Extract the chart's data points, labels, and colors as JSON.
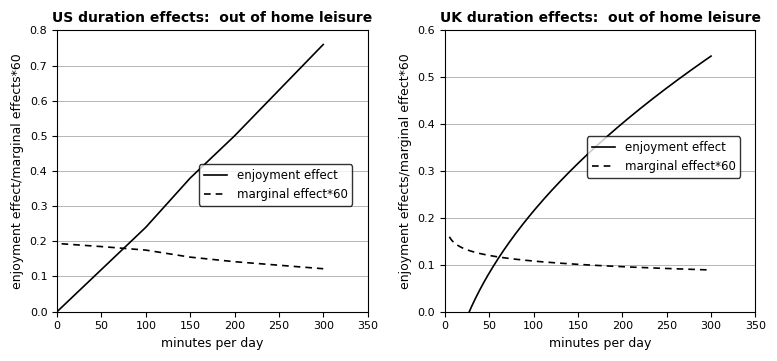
{
  "us_title": "US duration effects:  out of home leisure",
  "uk_title": "UK duration effects:  out of home leisure",
  "xlabel": "minutes per day",
  "us_ylabel": "enjoyment effect/marginal effects*60",
  "uk_ylabel": "enjoyment effects/marginal effect*60",
  "legend_enjoy": "enjoyment effect",
  "legend_marginal": "marginal effect*60",
  "x_max": 350,
  "x_ticks": [
    0,
    50,
    100,
    150,
    200,
    250,
    300,
    350
  ],
  "us_ylim": [
    0,
    0.8
  ],
  "us_yticks": [
    0,
    0.1,
    0.2,
    0.3,
    0.4,
    0.5,
    0.6,
    0.7,
    0.8
  ],
  "uk_ylim": [
    0,
    0.6
  ],
  "uk_yticks": [
    0,
    0.1,
    0.2,
    0.3,
    0.4,
    0.5,
    0.6
  ],
  "us_enjoy_x": [
    0,
    50,
    100,
    150,
    200,
    250,
    300
  ],
  "us_enjoy_y": [
    0.0,
    0.12,
    0.24,
    0.38,
    0.5,
    0.63,
    0.76
  ],
  "us_marginal_x": [
    5,
    50,
    100,
    150,
    200,
    250,
    300
  ],
  "us_marginal_y": [
    0.193,
    0.185,
    0.175,
    0.155,
    0.142,
    0.132,
    0.122
  ],
  "uk_enjoy_x": [
    0,
    50,
    100,
    150,
    200,
    250,
    300
  ],
  "uk_enjoy_y": [
    0.0,
    0.1,
    0.2,
    0.3,
    0.4,
    0.49,
    0.548
  ],
  "uk_marginal_x": [
    5,
    50,
    100,
    150,
    200,
    250,
    300
  ],
  "uk_marginal_y": [
    0.148,
    0.135,
    0.122,
    0.11,
    0.097,
    0.083,
    0.07
  ],
  "line_color": "#000000",
  "bg_color": "#ffffff",
  "grid_color": "#aaaaaa",
  "font_family": "DejaVu Sans",
  "title_fontsize": 10,
  "label_fontsize": 9,
  "tick_fontsize": 8,
  "legend_fontsize": 8.5
}
